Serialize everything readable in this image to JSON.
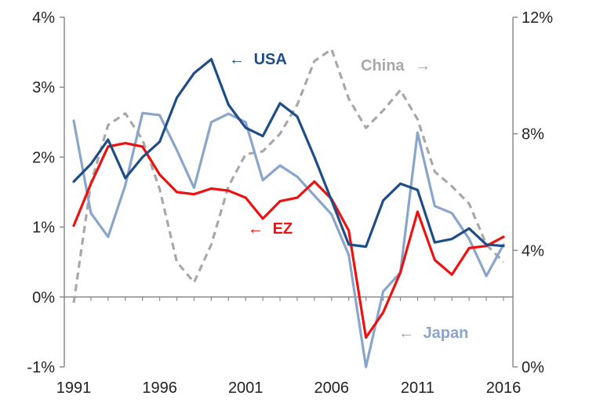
{
  "chart_data": {
    "type": "line",
    "x": [
      1991,
      1992,
      1993,
      1994,
      1995,
      1996,
      1997,
      1998,
      1999,
      2000,
      2001,
      2002,
      2003,
      2004,
      2005,
      2006,
      2007,
      2008,
      2009,
      2010,
      2011,
      2012,
      2013,
      2014,
      2015,
      2016
    ],
    "x_ticks": [
      1991,
      1996,
      2001,
      2006,
      2011,
      2016
    ],
    "y_left": {
      "min": -1,
      "max": 4,
      "ticks": [
        "-1%",
        "0%",
        "1%",
        "2%",
        "3%",
        "4%"
      ]
    },
    "y_right": {
      "min": 0,
      "max": 12,
      "ticks": [
        "0%",
        "4%",
        "8%",
        "12%"
      ]
    },
    "grid": false,
    "series": [
      {
        "name": "USA",
        "axis": "left",
        "color": "#1f4e86",
        "dash": false,
        "values": [
          1.65,
          1.9,
          2.25,
          1.7,
          2.0,
          2.22,
          2.85,
          3.2,
          3.4,
          2.75,
          2.42,
          2.3,
          2.77,
          2.58,
          2.0,
          1.38,
          0.75,
          0.72,
          1.38,
          1.62,
          1.53,
          0.78,
          0.83,
          0.98,
          0.75,
          0.73
        ]
      },
      {
        "name": "EZ",
        "axis": "left",
        "color": "#ee1111",
        "dash": false,
        "values": [
          1.02,
          1.62,
          2.15,
          2.2,
          2.15,
          1.75,
          1.5,
          1.47,
          1.55,
          1.52,
          1.42,
          1.12,
          1.37,
          1.42,
          1.65,
          1.4,
          0.95,
          -0.58,
          -0.22,
          0.35,
          1.22,
          0.53,
          0.32,
          0.7,
          0.73,
          0.86
        ]
      },
      {
        "name": "Japan",
        "axis": "left",
        "color": "#8aa5ca",
        "dash": false,
        "values": [
          2.52,
          1.2,
          0.86,
          1.6,
          2.63,
          2.6,
          2.1,
          1.56,
          2.5,
          2.62,
          2.5,
          1.67,
          1.88,
          1.72,
          1.45,
          1.18,
          0.6,
          -1.0,
          0.08,
          0.35,
          2.35,
          1.3,
          1.2,
          0.83,
          0.3,
          0.75
        ]
      },
      {
        "name": "China",
        "axis": "right",
        "color": "#a8a8a8",
        "dash": true,
        "values": [
          2.2,
          6.3,
          8.3,
          8.7,
          7.8,
          6.1,
          3.6,
          2.9,
          4.2,
          6.2,
          7.3,
          7.4,
          8.0,
          9.0,
          10.5,
          10.9,
          9.2,
          8.2,
          8.8,
          9.5,
          8.5,
          6.7,
          6.2,
          5.6,
          4.2,
          3.6
        ]
      }
    ],
    "labels": {
      "usa": {
        "arrow": "←",
        "text": "USA"
      },
      "ez": {
        "arrow": "←",
        "text": "EZ"
      },
      "japan": {
        "arrow": "←",
        "text": "Japan"
      },
      "china": {
        "text": "China",
        "arrow": "→"
      }
    }
  }
}
